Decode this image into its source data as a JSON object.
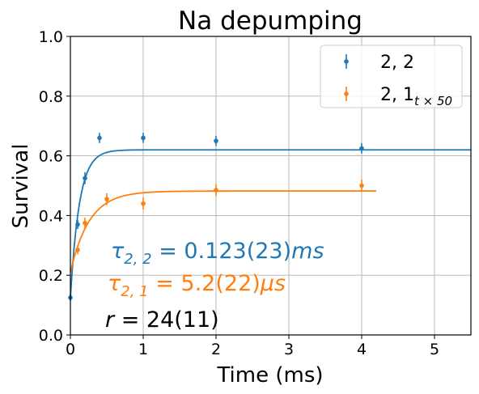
{
  "chart_data": {
    "type": "scatter",
    "title": "Na depumping",
    "xlabel": "Time (ms)",
    "ylabel": "Survival",
    "xlim": [
      0,
      5.5
    ],
    "ylim": [
      0,
      1.0
    ],
    "xticks": [
      0,
      1,
      2,
      3,
      4,
      5
    ],
    "yticks": [
      0.0,
      0.2,
      0.4,
      0.6,
      0.8,
      1.0
    ],
    "xtick_labels": [
      "0",
      "1",
      "2",
      "3",
      "4",
      "5"
    ],
    "ytick_labels": [
      "0.0",
      "0.2",
      "0.4",
      "0.6",
      "0.8",
      "1.0"
    ],
    "grid": true,
    "legend_position": "top-right",
    "series": [
      {
        "name": "2, 2",
        "legend_main": "2, 2",
        "legend_sub": "",
        "color": "#1f77b4",
        "x": [
          0.0,
          0.1,
          0.2,
          0.4,
          1.0,
          2.0,
          4.0
        ],
        "y": [
          0.125,
          0.37,
          0.525,
          0.66,
          0.66,
          0.65,
          0.625
        ],
        "yerr": [
          0.01,
          0.015,
          0.02,
          0.017,
          0.017,
          0.017,
          0.017
        ],
        "fit": {
          "offset": 0.125,
          "plateau": 0.62,
          "tau": 0.123,
          "xmax": 5.5
        }
      },
      {
        "name": "2, 1 t×50",
        "legend_main": "2, 1",
        "legend_sub": "t × 50",
        "color": "#ff7f0e",
        "x": [
          0.1,
          0.2,
          0.5,
          1.0,
          2.0,
          4.0
        ],
        "y": [
          0.285,
          0.375,
          0.455,
          0.44,
          0.485,
          0.5
        ],
        "yerr": [
          0.015,
          0.018,
          0.02,
          0.02,
          0.02,
          0.02
        ],
        "fit": {
          "offset": 0.21,
          "plateau": 0.482,
          "tau": 0.26,
          "xmax": 4.2
        }
      }
    ],
    "annotations": [
      {
        "name": "tau-22-annotation",
        "text": "τ2,2 = 0.123(23)ms",
        "color": "#1f77b4"
      },
      {
        "name": "tau-21-annotation",
        "text": "τ2,1 = 5.2(22)μs",
        "color": "#ff7f0e"
      },
      {
        "name": "r-annotation",
        "text": "r = 24(11)",
        "color": "#000000"
      }
    ]
  }
}
